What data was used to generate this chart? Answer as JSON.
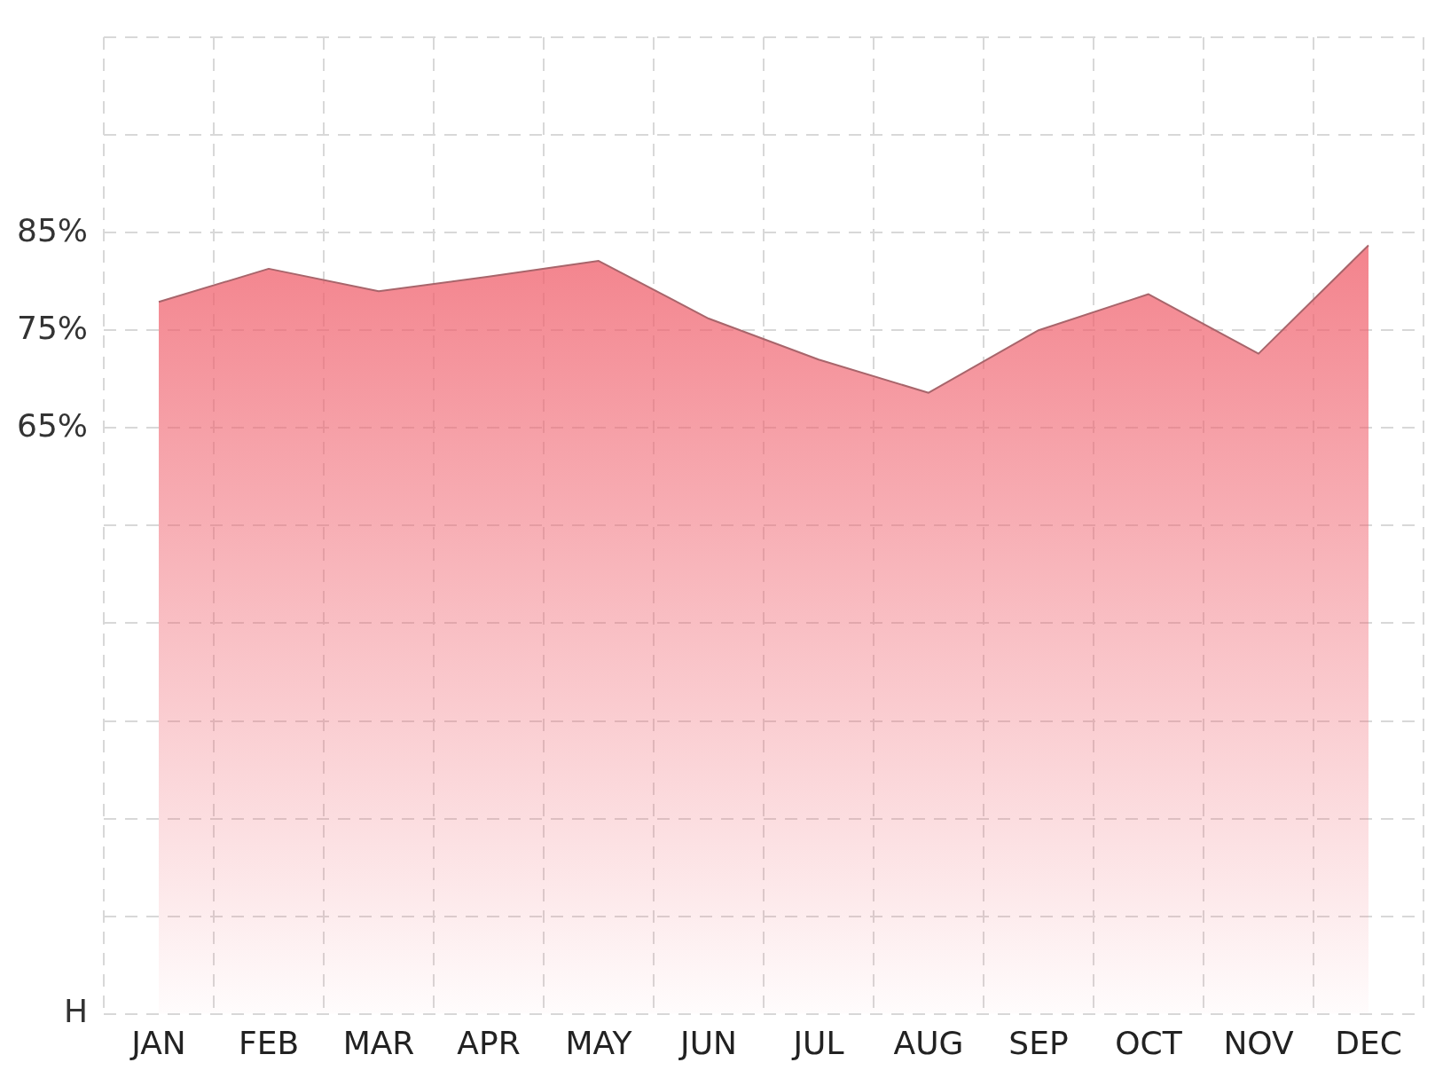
{
  "chart_data": {
    "type": "area",
    "categories": [
      "JAN",
      "FEB",
      "MAR",
      "APR",
      "MAY",
      "JUN",
      "JUL",
      "AUG",
      "SEP",
      "OCT",
      "NOV",
      "DEC"
    ],
    "values": [
      77.9,
      81.3,
      79.0,
      80.5,
      82.1,
      76.2,
      72.0,
      68.6,
      75.0,
      78.7,
      72.6,
      83.7
    ],
    "color": "#f0626e",
    "ylim": [
      5,
      105
    ],
    "yticks": [
      {
        "value": 5,
        "label": "H"
      },
      {
        "value": 15,
        "label": null
      },
      {
        "value": 25,
        "label": null
      },
      {
        "value": 35,
        "label": null
      },
      {
        "value": 45,
        "label": null
      },
      {
        "value": 55,
        "label": null
      },
      {
        "value": 65,
        "label": "65%"
      },
      {
        "value": 75,
        "label": "75%"
      },
      {
        "value": 85,
        "label": "85%"
      },
      {
        "value": 95,
        "label": null
      },
      {
        "value": 105,
        "label": null
      }
    ],
    "grid": true
  }
}
